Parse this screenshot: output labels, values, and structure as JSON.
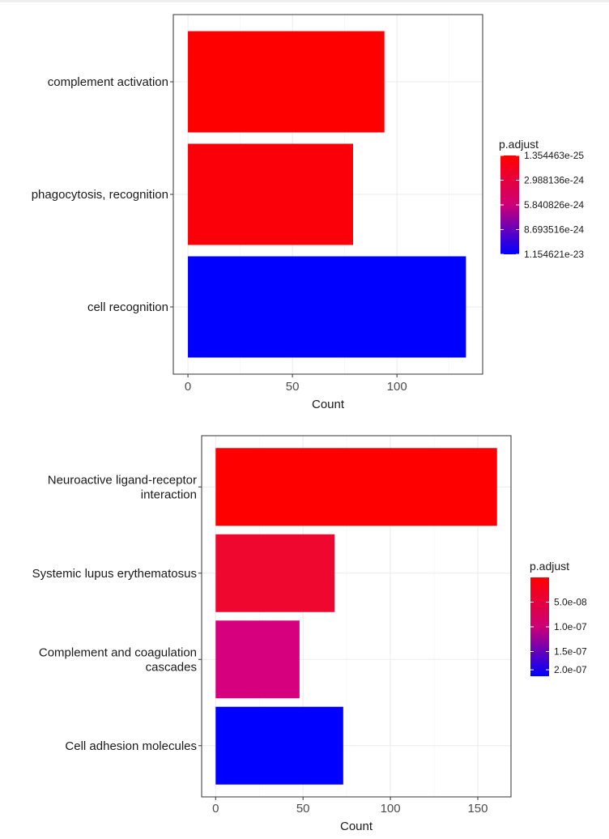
{
  "chart_data": [
    {
      "type": "bar",
      "orientation": "horizontal",
      "categories": [
        "complement activation",
        "phagocytosis, recognition",
        "cell recognition"
      ],
      "values": [
        94,
        79,
        133
      ],
      "bar_colors": [
        "#ff0000",
        "#fb0008",
        "#0000ff"
      ],
      "xlabel": "Count",
      "xlim": [
        -7,
        141
      ],
      "xticks": [
        0,
        50,
        100
      ],
      "xtick_labels": [
        "0",
        "50",
        "100"
      ],
      "grid": true,
      "legend": {
        "title": "p.adjust",
        "placement": "right",
        "low_color": "#ff0000",
        "high_color": "#0000ff",
        "labels": [
          "1.354463e-25",
          "2.988136e-24",
          "5.840826e-24",
          "8.693516e-24",
          "1.154621e-23"
        ]
      }
    },
    {
      "type": "bar",
      "orientation": "horizontal",
      "categories": [
        "Neuroactive ligand-receptor\ninteraction",
        "Systemic lupus erythematosus",
        "Complement and coagulation\ncascades",
        "Cell adhesion molecules"
      ],
      "values": [
        161,
        68,
        48,
        73
      ],
      "bar_colors": [
        "#ff0000",
        "#f0072f",
        "#d6007f",
        "#0000ff"
      ],
      "xlabel": "Count",
      "xlim": [
        -8,
        169
      ],
      "xticks": [
        0,
        50,
        100,
        150
      ],
      "xtick_labels": [
        "0",
        "50",
        "100",
        "150"
      ],
      "grid": true,
      "legend": {
        "title": "p.adjust",
        "placement": "right",
        "low_color": "#ff0000",
        "high_color": "#0000ff",
        "labels": [
          "5.0e-08",
          "1.0e-07",
          "1.5e-07",
          "2.0e-07"
        ]
      }
    }
  ]
}
